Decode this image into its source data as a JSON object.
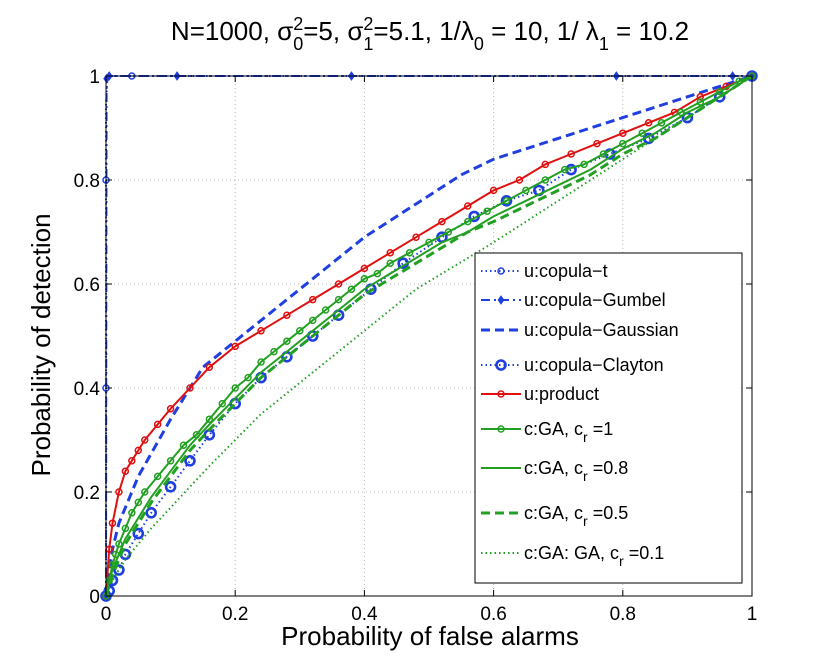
{
  "chart_data": {
    "type": "line",
    "title": {
      "prefix": "N=1000, σ",
      "sup0": "2",
      "sub0": "0",
      "mid1": "=5, σ",
      "sup1": "2",
      "sub1": "1",
      "mid2": "=5.1,  1/λ",
      "sub2": "0",
      "mid3": " = 10, 1/ λ",
      "sub3": "1",
      "suffix": " = 10.2"
    },
    "xlabel": "Probability of false alarms",
    "ylabel": "Probability of detection",
    "xlim": [
      0,
      1
    ],
    "ylim": [
      0,
      1
    ],
    "grid": true,
    "legend_position": "lower-right",
    "xticks": [
      0,
      0.2,
      0.4,
      0.6,
      0.8,
      1
    ],
    "yticks": [
      0,
      0.2,
      0.4,
      0.6,
      0.8,
      1
    ],
    "xtick_labels": [
      "0",
      "0.2",
      "0.4",
      "0.6",
      "0.8",
      "1"
    ],
    "ytick_labels": [
      "0",
      "0.2",
      "0.4",
      "0.6",
      "0.8",
      "1"
    ],
    "series": [
      {
        "name": "u:copula−t",
        "label": {
          "main": "u:copula−t"
        },
        "color": "#1f3fe0",
        "dash": "dotted",
        "marker": "circle",
        "marker_size": 3,
        "marker_every": 8,
        "x": [
          0,
          0,
          0,
          0,
          0,
          0,
          0,
          0,
          0,
          0,
          0,
          0,
          0,
          0,
          0,
          0,
          0,
          0,
          0,
          0,
          0.002,
          0.005,
          0.01,
          0.02,
          0.04,
          0.06,
          0.1,
          0.2,
          0.38,
          0.6,
          0.8,
          0.97,
          1.0
        ],
        "y": [
          0,
          0.05,
          0.1,
          0.15,
          0.2,
          0.25,
          0.3,
          0.35,
          0.4,
          0.45,
          0.5,
          0.55,
          0.6,
          0.65,
          0.7,
          0.75,
          0.8,
          0.85,
          0.9,
          0.95,
          0.99,
          0.998,
          1,
          1,
          1,
          1,
          1,
          1,
          1,
          1,
          1,
          1,
          1
        ]
      },
      {
        "name": "u:copula−Gumbel",
        "label": {
          "main": "u:copula−Gumbel"
        },
        "color": "#1f3fe0",
        "dash": "dashdot",
        "marker": "diamond",
        "marker_size": 4,
        "marker_every": 1,
        "x": [
          0,
          0.001,
          0.005,
          0.11,
          0.38,
          0.79,
          0.97,
          1.0
        ],
        "y": [
          0,
          0.995,
          1,
          1,
          1,
          1,
          1,
          1
        ]
      },
      {
        "name": "u:copula−Gaussian",
        "label": {
          "main": "u:copula−Gaussian"
        },
        "color": "#1f3fe0",
        "dash": "dashed",
        "marker": "none",
        "x": [
          0,
          0.01,
          0.02,
          0.05,
          0.1,
          0.15,
          0.2,
          0.25,
          0.3,
          0.35,
          0.4,
          0.45,
          0.5,
          0.55,
          0.6,
          0.65,
          0.7,
          0.75,
          0.8,
          0.85,
          0.9,
          0.95,
          1.0
        ],
        "y": [
          0,
          0.09,
          0.14,
          0.23,
          0.34,
          0.44,
          0.49,
          0.54,
          0.59,
          0.64,
          0.69,
          0.73,
          0.77,
          0.81,
          0.84,
          0.86,
          0.88,
          0.9,
          0.92,
          0.94,
          0.96,
          0.98,
          1.0
        ]
      },
      {
        "name": "u:copula−Clayton",
        "label": {
          "main": "u:copula−Clayton"
        },
        "color": "#1f3fe0",
        "dash": "dotted",
        "marker": "circle-bold",
        "marker_size": 4.5,
        "marker_every": 1,
        "x": [
          0,
          0.005,
          0.01,
          0.02,
          0.03,
          0.05,
          0.07,
          0.1,
          0.13,
          0.16,
          0.2,
          0.24,
          0.28,
          0.32,
          0.36,
          0.41,
          0.46,
          0.52,
          0.57,
          0.62,
          0.67,
          0.72,
          0.78,
          0.84,
          0.9,
          0.95,
          1.0
        ],
        "y": [
          0,
          0.01,
          0.03,
          0.05,
          0.08,
          0.12,
          0.16,
          0.21,
          0.26,
          0.31,
          0.37,
          0.42,
          0.46,
          0.5,
          0.54,
          0.59,
          0.64,
          0.69,
          0.73,
          0.76,
          0.78,
          0.82,
          0.85,
          0.88,
          0.92,
          0.96,
          1.0
        ]
      },
      {
        "name": "u:product",
        "label": {
          "main": "u:product"
        },
        "color": "#e01010",
        "dash": "solid",
        "marker": "circle",
        "marker_size": 3,
        "marker_every": 1,
        "x": [
          0,
          0.005,
          0.01,
          0.02,
          0.03,
          0.04,
          0.05,
          0.06,
          0.08,
          0.1,
          0.13,
          0.16,
          0.2,
          0.24,
          0.28,
          0.32,
          0.36,
          0.4,
          0.44,
          0.48,
          0.52,
          0.56,
          0.6,
          0.64,
          0.68,
          0.72,
          0.76,
          0.8,
          0.84,
          0.88,
          0.92,
          0.96,
          1.0
        ],
        "y": [
          0,
          0.09,
          0.14,
          0.2,
          0.24,
          0.26,
          0.28,
          0.3,
          0.33,
          0.36,
          0.4,
          0.44,
          0.48,
          0.51,
          0.54,
          0.57,
          0.6,
          0.63,
          0.66,
          0.69,
          0.72,
          0.75,
          0.78,
          0.8,
          0.83,
          0.85,
          0.87,
          0.89,
          0.91,
          0.93,
          0.96,
          0.98,
          1.0
        ]
      },
      {
        "name": "c:GA, c_r =1",
        "label": {
          "main": "c:GA, c",
          "sub": "r",
          "tail": " =1"
        },
        "color": "#22a022",
        "dash": "solid",
        "marker": "circle",
        "marker_size": 3,
        "marker_every": 1,
        "x": [
          0,
          0.005,
          0.01,
          0.015,
          0.02,
          0.03,
          0.04,
          0.05,
          0.06,
          0.08,
          0.1,
          0.12,
          0.14,
          0.16,
          0.18,
          0.2,
          0.22,
          0.24,
          0.26,
          0.28,
          0.3,
          0.32,
          0.34,
          0.36,
          0.38,
          0.4,
          0.42,
          0.44,
          0.47,
          0.5,
          0.53,
          0.56,
          0.59,
          0.62,
          0.65,
          0.68,
          0.71,
          0.74,
          0.77,
          0.8,
          0.83,
          0.86,
          0.89,
          0.92,
          0.95,
          0.98,
          1.0
        ],
        "y": [
          0,
          0.03,
          0.06,
          0.08,
          0.1,
          0.13,
          0.16,
          0.18,
          0.2,
          0.23,
          0.26,
          0.29,
          0.31,
          0.34,
          0.37,
          0.4,
          0.42,
          0.45,
          0.47,
          0.49,
          0.51,
          0.53,
          0.55,
          0.57,
          0.59,
          0.61,
          0.62,
          0.64,
          0.66,
          0.68,
          0.7,
          0.72,
          0.74,
          0.76,
          0.78,
          0.8,
          0.82,
          0.83,
          0.85,
          0.87,
          0.89,
          0.91,
          0.93,
          0.95,
          0.97,
          0.99,
          1.0
        ]
      },
      {
        "name": "c:GA, c_r =0.8",
        "label": {
          "main": "c:GA, c",
          "sub": "r",
          "tail": " =0.8"
        },
        "color": "#22a022",
        "dash": "solid",
        "marker": "none",
        "x": [
          0,
          0.005,
          0.01,
          0.02,
          0.03,
          0.05,
          0.07,
          0.1,
          0.13,
          0.16,
          0.2,
          0.24,
          0.28,
          0.32,
          0.36,
          0.4,
          0.44,
          0.48,
          0.52,
          0.56,
          0.6,
          0.65,
          0.7,
          0.75,
          0.8,
          0.85,
          0.9,
          0.95,
          1.0
        ],
        "y": [
          0,
          0.03,
          0.05,
          0.08,
          0.11,
          0.15,
          0.19,
          0.24,
          0.29,
          0.33,
          0.38,
          0.43,
          0.47,
          0.51,
          0.55,
          0.59,
          0.62,
          0.65,
          0.68,
          0.7,
          0.73,
          0.76,
          0.79,
          0.82,
          0.86,
          0.89,
          0.93,
          0.96,
          1.0
        ]
      },
      {
        "name": "c:GA, c_r =0.5",
        "label": {
          "main": "c:GA, c",
          "sub": "r",
          "tail": " =0.5"
        },
        "color": "#22a022",
        "dash": "dashed",
        "marker": "none",
        "x": [
          0,
          0.005,
          0.01,
          0.02,
          0.03,
          0.05,
          0.07,
          0.1,
          0.13,
          0.16,
          0.2,
          0.24,
          0.28,
          0.32,
          0.36,
          0.4,
          0.44,
          0.48,
          0.52,
          0.56,
          0.6,
          0.65,
          0.7,
          0.75,
          0.8,
          0.85,
          0.9,
          0.95,
          1.0
        ],
        "y": [
          0,
          0.02,
          0.04,
          0.07,
          0.1,
          0.14,
          0.18,
          0.23,
          0.28,
          0.32,
          0.37,
          0.42,
          0.46,
          0.5,
          0.54,
          0.58,
          0.61,
          0.64,
          0.67,
          0.7,
          0.72,
          0.75,
          0.78,
          0.81,
          0.85,
          0.88,
          0.92,
          0.96,
          1.0
        ]
      },
      {
        "name": "c:GA: GA, c_r =0.1",
        "label": {
          "main": "c:GA: GA, c",
          "sub": "r",
          "tail": " =0.1"
        },
        "color": "#22a022",
        "dash": "dotted",
        "marker": "none",
        "x": [
          0,
          0.005,
          0.01,
          0.02,
          0.03,
          0.05,
          0.07,
          0.1,
          0.13,
          0.16,
          0.2,
          0.24,
          0.28,
          0.32,
          0.36,
          0.4,
          0.44,
          0.48,
          0.52,
          0.56,
          0.6,
          0.65,
          0.7,
          0.75,
          0.8,
          0.85,
          0.9,
          0.95,
          1.0
        ],
        "y": [
          0,
          0.02,
          0.03,
          0.05,
          0.07,
          0.1,
          0.13,
          0.17,
          0.21,
          0.25,
          0.3,
          0.35,
          0.39,
          0.43,
          0.47,
          0.51,
          0.55,
          0.59,
          0.62,
          0.65,
          0.68,
          0.72,
          0.76,
          0.8,
          0.84,
          0.88,
          0.92,
          0.96,
          1.0
        ]
      }
    ]
  }
}
